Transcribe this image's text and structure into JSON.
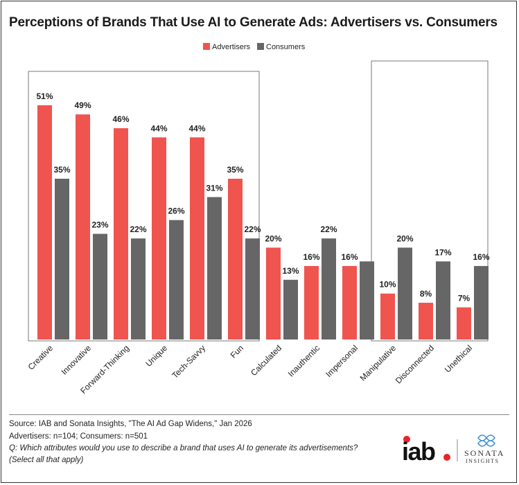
{
  "chart_data": {
    "type": "bar",
    "title": "Perceptions of Brands That Use AI to Generate Ads: Advertisers vs. Consumers",
    "categories": [
      "Creative",
      "Innovative",
      "Forward-Thinking",
      "Unique",
      "Tech-Savvy",
      "Fun",
      "Calculated",
      "Inauthentic",
      "Impersonal",
      "Manipulative",
      "Disconnected",
      "Unethical"
    ],
    "series": [
      {
        "name": "Advertisers",
        "color": "#F0544F",
        "values": [
          51,
          49,
          46,
          44,
          44,
          35,
          20,
          16,
          16,
          10,
          8,
          7
        ],
        "labels": [
          "51%",
          "49%",
          "46%",
          "44%",
          "44%",
          "35%",
          "20%",
          "16%",
          "16%",
          "10%",
          "8%",
          "7%"
        ]
      },
      {
        "name": "Consumers",
        "color": "#666666",
        "values": [
          35,
          23,
          22,
          26,
          31,
          22,
          13,
          22,
          17,
          20,
          17,
          16
        ],
        "labels": [
          "35%",
          "23%",
          "22%",
          "26%",
          "31%",
          "22%",
          "13%",
          "22%",
          "",
          "20%",
          "17%",
          "16%"
        ]
      }
    ],
    "ylim": [
      0,
      55
    ],
    "grid": false,
    "legend": "top-center",
    "highlight_groups": [
      [
        "Creative",
        "Fun"
      ],
      [
        "Manipulative",
        "Unethical"
      ]
    ]
  },
  "footer": {
    "source": "Source: IAB and Sonata Insights, \"The AI Ad Gap Widens,\" Jan 2026",
    "sample": "Advertisers: n=104; Consumers: n=501",
    "question": "Q: Which attributes would you use to describe a brand that uses AI to generate its advertisements?",
    "note": "(Select all that apply)"
  },
  "logos": {
    "iab": "iab.",
    "sonata": "SONATA",
    "sonata_sub": "INSIGHTS"
  }
}
